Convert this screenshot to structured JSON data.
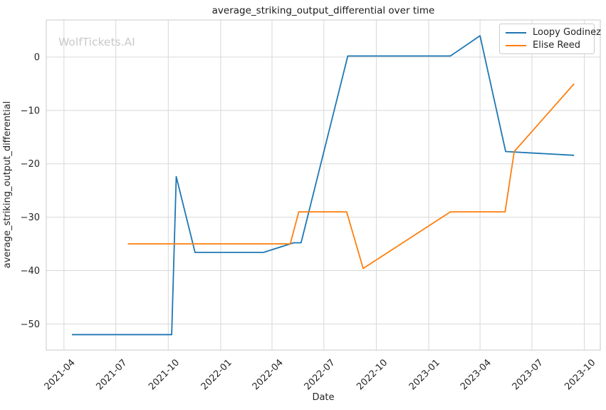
{
  "watermark": "WolfTickets.AI",
  "chart_data": {
    "type": "line",
    "title": "average_striking_output_differential over time",
    "xlabel": "Date",
    "ylabel": "average_striking_output_differential",
    "grid": true,
    "legend_position": "upper right",
    "x_tick_labels": [
      "2021-04",
      "2021-07",
      "2021-10",
      "2022-01",
      "2022-04",
      "2022-07",
      "2022-10",
      "2023-01",
      "2023-04",
      "2023-07",
      "2023-10"
    ],
    "y_tick_values": [
      0,
      -10,
      -20,
      -30,
      -40,
      -50
    ],
    "xlim": [
      "2021-03-01",
      "2023-10-29"
    ],
    "ylim": [
      -54.9,
      6.95
    ],
    "series": [
      {
        "name": "Loopy Godinez",
        "color": "#1f77b4",
        "x": [
          "2021-04-15",
          "2021-10-07",
          "2021-10-15",
          "2021-11-17",
          "2022-03-17",
          "2022-05-09",
          "2022-05-22",
          "2022-08-12",
          "2023-02-08",
          "2023-04-01",
          "2023-05-16",
          "2023-09-13"
        ],
        "values": [
          -52,
          -52,
          -22.4,
          -36.6,
          -36.6,
          -34.8,
          -34.8,
          0.2,
          0.2,
          4,
          -17.7,
          -18.4
        ]
      },
      {
        "name": "Elise Reed",
        "color": "#ff7f0e",
        "x": [
          "2021-07-22",
          "2022-05-03",
          "2022-05-18",
          "2022-08-10",
          "2022-09-08",
          "2023-02-08",
          "2023-05-15",
          "2023-05-31",
          "2023-09-13"
        ],
        "values": [
          -35,
          -35,
          -29,
          -29,
          -39.6,
          -29,
          -29,
          -17.7,
          -5
        ]
      }
    ]
  },
  "style": {
    "grid_color": "#d8d8d8",
    "spine_color": "#d2d2d2",
    "text_color": "#262626",
    "watermark_color": "#c9c9c9",
    "legend_border_color": "#cbcbcb",
    "background": "#ffffff"
  }
}
